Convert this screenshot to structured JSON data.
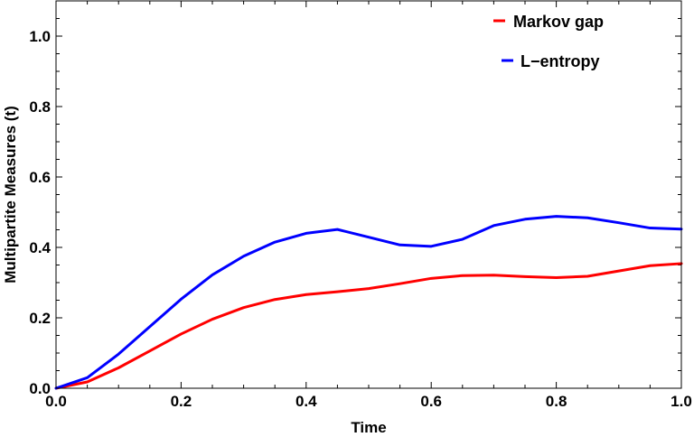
{
  "chart_data": {
    "type": "line",
    "title": "",
    "xlabel": "Time",
    "ylabel": "Multipartite Measures (t)",
    "xlim": [
      0,
      1
    ],
    "ylim": [
      0,
      1.1
    ],
    "xticks": [
      0.0,
      0.2,
      0.4,
      0.6,
      0.8,
      1.0
    ],
    "xtick_labels": [
      "0.0",
      "0.2",
      "0.4",
      "0.6",
      "0.8",
      "1.0"
    ],
    "yticks": [
      0.0,
      0.2,
      0.4,
      0.6,
      0.8,
      1.0
    ],
    "ytick_labels": [
      "0.0",
      "0.2",
      "0.4",
      "0.6",
      "0.8",
      "1.0"
    ],
    "grid": false,
    "legend_position": "top-right",
    "series": [
      {
        "name": "Markov gap",
        "color": "#ff0000",
        "x": [
          0,
          0.05,
          0.1,
          0.15,
          0.2,
          0.25,
          0.3,
          0.35,
          0.4,
          0.45,
          0.5,
          0.55,
          0.6,
          0.65,
          0.7,
          0.75,
          0.8,
          0.85,
          0.9,
          0.95,
          1.0
        ],
        "y": [
          0,
          0.018,
          0.058,
          0.106,
          0.154,
          0.196,
          0.229,
          0.252,
          0.266,
          0.274,
          0.283,
          0.297,
          0.312,
          0.32,
          0.321,
          0.317,
          0.314,
          0.318,
          0.333,
          0.348,
          0.354
        ]
      },
      {
        "name": "L−entropy",
        "color": "#0000ff",
        "x": [
          0,
          0.05,
          0.1,
          0.15,
          0.2,
          0.25,
          0.3,
          0.35,
          0.4,
          0.45,
          0.5,
          0.55,
          0.6,
          0.65,
          0.7,
          0.75,
          0.8,
          0.85,
          0.9,
          0.95,
          1.0
        ],
        "y": [
          0,
          0.03,
          0.097,
          0.175,
          0.253,
          0.322,
          0.375,
          0.415,
          0.44,
          0.451,
          0.429,
          0.407,
          0.403,
          0.423,
          0.462,
          0.48,
          0.488,
          0.484,
          0.47,
          0.455,
          0.452
        ]
      }
    ]
  }
}
